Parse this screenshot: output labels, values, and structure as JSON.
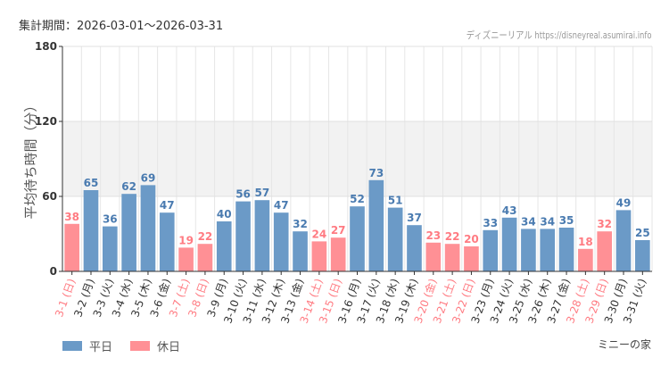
{
  "header": {
    "period": "集計期間：2026-03-01～2026-03-31",
    "credit": "ディズニーリアル https://disneyreal.asumirai.info"
  },
  "footer": {
    "attraction": "ミニーの家"
  },
  "colors": {
    "weekday": "#6b9ac7",
    "holiday": "#ff9095",
    "weekday_label": "#333333",
    "holiday_label": "#ff7b82",
    "band": "#f2f2f2"
  },
  "chart_data": {
    "type": "bar",
    "ylabel": "平均待ち時間（分）",
    "ylim": [
      0,
      180
    ],
    "yticks": [
      0,
      60,
      120,
      180
    ],
    "grid": true,
    "shaded_band": [
      60,
      120
    ],
    "legend": {
      "position": "bottom-left",
      "entries": [
        {
          "name": "平日",
          "color": "#6b9ac7"
        },
        {
          "name": "休日",
          "color": "#ff9095"
        }
      ]
    },
    "categories": [
      "3-1 (日)",
      "3-2 (月)",
      "3-3 (火)",
      "3-4 (水)",
      "3-5 (木)",
      "3-6 (金)",
      "3-7 (土)",
      "3-8 (日)",
      "3-9 (月)",
      "3-10 (火)",
      "3-11 (水)",
      "3-12 (木)",
      "3-13 (金)",
      "3-14 (土)",
      "3-15 (日)",
      "3-16 (月)",
      "3-17 (火)",
      "3-18 (水)",
      "3-19 (木)",
      "3-20 (金)",
      "3-21 (土)",
      "3-22 (日)",
      "3-23 (月)",
      "3-24 (火)",
      "3-25 (水)",
      "3-26 (木)",
      "3-27 (金)",
      "3-28 (土)",
      "3-29 (日)",
      "3-30 (月)",
      "3-31 (火)"
    ],
    "values": [
      38,
      65,
      36,
      62,
      69,
      47,
      19,
      22,
      40,
      56,
      57,
      47,
      32,
      24,
      27,
      52,
      73,
      51,
      37,
      23,
      22,
      20,
      33,
      43,
      34,
      34,
      35,
      18,
      32,
      49,
      25
    ],
    "holiday": [
      true,
      false,
      false,
      false,
      false,
      false,
      true,
      true,
      false,
      false,
      false,
      false,
      false,
      true,
      true,
      false,
      false,
      false,
      false,
      true,
      true,
      true,
      false,
      false,
      false,
      false,
      false,
      true,
      true,
      false,
      false
    ]
  }
}
